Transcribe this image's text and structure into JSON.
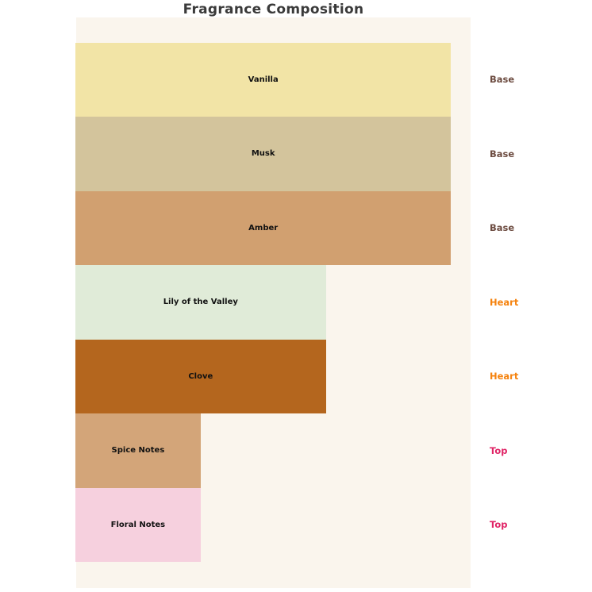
{
  "title": "Fragrance Composition",
  "colors": {
    "figure_background": "#ffffff",
    "plot_background": "#faf5ed",
    "title_text": "#3a3a3a",
    "bar_label_text": "#111111",
    "group_label_colors": {
      "Base": "#6d4c41",
      "Heart": "#f5820d",
      "Top": "#e02466"
    }
  },
  "chart_data": {
    "type": "bar",
    "orientation": "horizontal",
    "title": "Fragrance Composition",
    "xlabel": "",
    "ylabel": "",
    "axes_visible": false,
    "grid": false,
    "legend_position": "none",
    "xlim": [
      0,
      3.15
    ],
    "categories": [
      "Vanilla",
      "Musk",
      "Amber",
      "Lily of the Valley",
      "Clove",
      "Spice Notes",
      "Floral Notes"
    ],
    "values": [
      3,
      3,
      3,
      2,
      2,
      1,
      1
    ],
    "value_note": "relative bar lengths estimated from pixel widths (473:316:159 px ≈ 3:2:1)",
    "bars": [
      {
        "label": "Vanilla",
        "group": "Base",
        "value": 3,
        "color": "#f2e4a6"
      },
      {
        "label": "Musk",
        "group": "Base",
        "value": 3,
        "color": "#d3c49c"
      },
      {
        "label": "Amber",
        "group": "Base",
        "value": 3,
        "color": "#d1a070"
      },
      {
        "label": "Lily of the Valley",
        "group": "Heart",
        "value": 2,
        "color": "#e0ebd8"
      },
      {
        "label": "Clove",
        "group": "Heart",
        "value": 2,
        "color": "#b4661e"
      },
      {
        "label": "Spice Notes",
        "group": "Top",
        "value": 1,
        "color": "#d3a579"
      },
      {
        "label": "Floral Notes",
        "group": "Top",
        "value": 1,
        "color": "#f6d0de"
      }
    ]
  }
}
